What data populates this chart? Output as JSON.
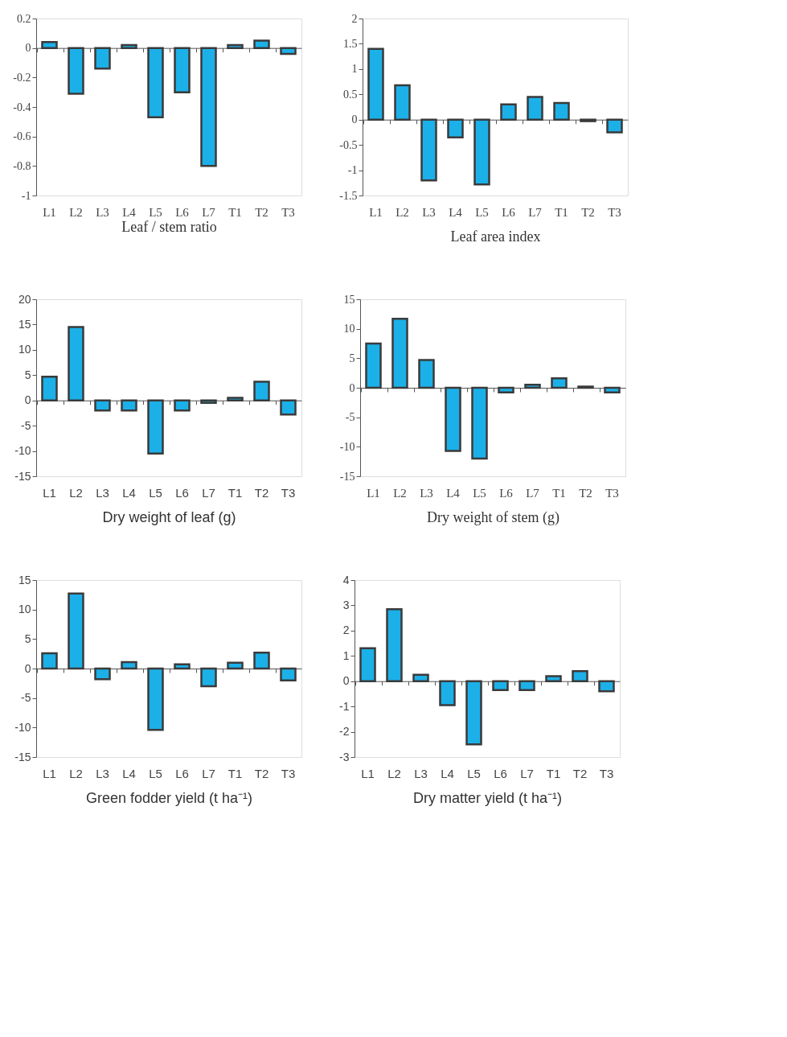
{
  "chart_data": [
    {
      "type": "bar",
      "xlabel": "Leaf / stem ratio",
      "categories": [
        "L1",
        "L2",
        "L3",
        "L4",
        "L5",
        "L6",
        "L7",
        "T1",
        "T2",
        "T3"
      ],
      "values": [
        0.04,
        -0.31,
        -0.14,
        0.02,
        -0.47,
        -0.3,
        -0.8,
        0.02,
        0.05,
        -0.04
      ],
      "color": "#1cb0e8",
      "ylim": [
        -1,
        0.2
      ],
      "yticks": [
        -1,
        -0.8,
        -0.6,
        -0.4,
        -0.2,
        0,
        0.2
      ]
    },
    {
      "type": "bar",
      "xlabel": "Leaf area index",
      "categories": [
        "L1",
        "L2",
        "L3",
        "L4",
        "L5",
        "L6",
        "L7",
        "T1",
        "T2",
        "T3"
      ],
      "values": [
        1.4,
        0.68,
        -1.2,
        -0.35,
        -1.28,
        0.3,
        0.45,
        0.33,
        -0.03,
        -0.25
      ],
      "color": "#1cb0e8",
      "ylim": [
        -1.5,
        2
      ],
      "yticks": [
        -1.5,
        -1,
        -0.5,
        0,
        0.5,
        1,
        1.5,
        2
      ]
    },
    {
      "type": "bar",
      "xlabel": "Dry weight of leaf (g)",
      "categories": [
        "L1",
        "L2",
        "L3",
        "L4",
        "L5",
        "L6",
        "L7",
        "T1",
        "T2",
        "T3"
      ],
      "values": [
        4.7,
        14.5,
        -2,
        -2,
        -10.5,
        -2,
        -0.5,
        0.5,
        3.7,
        -2.8
      ],
      "color": "#1cb0e8",
      "ylim": [
        -15,
        20
      ],
      "yticks": [
        -15,
        -10,
        -5,
        0,
        5,
        10,
        15,
        20
      ]
    },
    {
      "type": "bar",
      "xlabel": "Dry weight of stem (g)",
      "categories": [
        "L1",
        "L2",
        "L3",
        "L4",
        "L5",
        "L6",
        "L7",
        "T1",
        "T2",
        "T3"
      ],
      "values": [
        7.5,
        11.7,
        4.7,
        -10.7,
        -12,
        -0.8,
        0.5,
        1.6,
        0.2,
        -0.8
      ],
      "color": "#1cb0e8",
      "ylim": [
        -15,
        15
      ],
      "yticks": [
        -15,
        -10,
        -5,
        0,
        5,
        10,
        15
      ]
    },
    {
      "type": "bar",
      "xlabel": "Green fodder yield (t ha⁻¹)",
      "categories": [
        "L1",
        "L2",
        "L3",
        "L4",
        "L5",
        "L6",
        "L7",
        "T1",
        "T2",
        "T3"
      ],
      "values": [
        2.6,
        12.7,
        -1.8,
        1.1,
        -10.4,
        0.7,
        -3,
        1,
        2.7,
        -2
      ],
      "color": "#1cb0e8",
      "ylim": [
        -15,
        15
      ],
      "yticks": [
        -15,
        -10,
        -5,
        0,
        5,
        10,
        15
      ]
    },
    {
      "type": "bar",
      "xlabel": "Dry matter yield (t ha⁻¹)",
      "categories": [
        "L1",
        "L2",
        "L3",
        "L4",
        "L5",
        "L6",
        "L7",
        "T1",
        "T2",
        "T3"
      ],
      "values": [
        1.3,
        2.85,
        0.25,
        -0.95,
        -2.5,
        -0.35,
        -0.35,
        0.2,
        0.4,
        -0.4
      ],
      "color": "#1cb0e8",
      "ylim": [
        -3,
        4
      ],
      "yticks": [
        -3,
        -2,
        -1,
        0,
        1,
        2,
        3,
        4
      ]
    }
  ]
}
